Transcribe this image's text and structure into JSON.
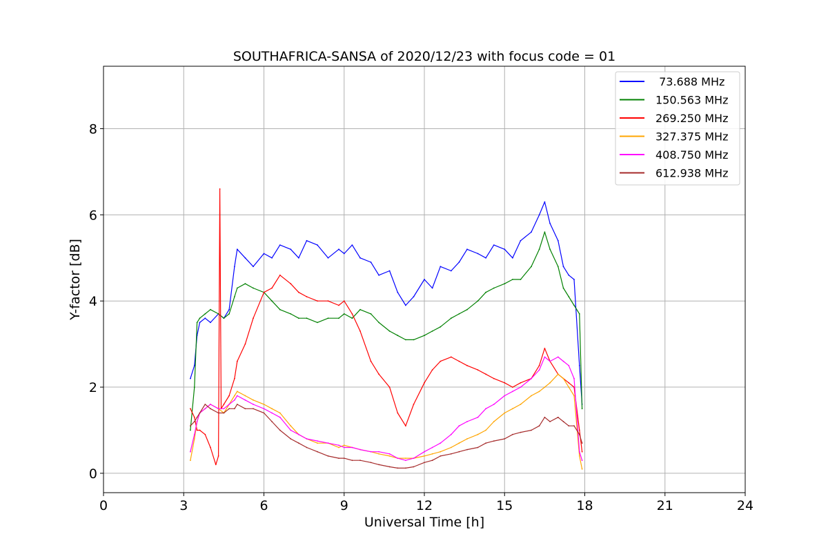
{
  "chart_data": {
    "type": "line",
    "title": "SOUTHAFRICA-SANSA of 2020/12/23 with focus code = 01",
    "xlabel": "Universal Time [h]",
    "ylabel": "Y-factor [dB]",
    "xlim": [
      0,
      24
    ],
    "ylim": [
      -0.45,
      9.45
    ],
    "xticks": [
      0,
      3,
      6,
      9,
      12,
      15,
      18,
      21,
      24
    ],
    "yticks": [
      0,
      2,
      4,
      6,
      8
    ],
    "grid": true,
    "legend_position": "top-right",
    "series": [
      {
        "name": " 73.688 MHz",
        "color": "#0000ff",
        "x": [
          3.25,
          3.4,
          3.5,
          3.6,
          3.8,
          4.0,
          4.3,
          4.5,
          4.7,
          4.9,
          5.0,
          5.3,
          5.6,
          6.0,
          6.3,
          6.6,
          7.0,
          7.3,
          7.6,
          8.0,
          8.4,
          8.8,
          9.0,
          9.3,
          9.6,
          10.0,
          10.3,
          10.7,
          11.0,
          11.3,
          11.6,
          12.0,
          12.3,
          12.6,
          13.0,
          13.3,
          13.6,
          14.0,
          14.3,
          14.6,
          15.0,
          15.3,
          15.6,
          16.0,
          16.3,
          16.5,
          16.7,
          17.0,
          17.2,
          17.4,
          17.6,
          17.8,
          17.9
        ],
        "values": [
          2.2,
          2.5,
          3.2,
          3.5,
          3.6,
          3.5,
          3.7,
          3.6,
          3.8,
          4.8,
          5.2,
          5.0,
          4.8,
          5.1,
          5.0,
          5.3,
          5.2,
          5.0,
          5.4,
          5.3,
          5.0,
          5.2,
          5.1,
          5.3,
          5.0,
          4.9,
          4.6,
          4.7,
          4.2,
          3.9,
          4.1,
          4.5,
          4.3,
          4.8,
          4.7,
          4.9,
          5.2,
          5.1,
          5.0,
          5.3,
          5.2,
          5.0,
          5.4,
          5.6,
          6.0,
          6.3,
          5.8,
          5.4,
          4.8,
          4.6,
          4.5,
          2.5,
          1.6
        ]
      },
      {
        "name": "150.563 MHz",
        "color": "#008000",
        "x": [
          3.25,
          3.4,
          3.5,
          3.6,
          3.8,
          4.0,
          4.3,
          4.5,
          4.7,
          4.9,
          5.0,
          5.3,
          5.6,
          6.0,
          6.3,
          6.6,
          7.0,
          7.3,
          7.6,
          8.0,
          8.4,
          8.8,
          9.0,
          9.3,
          9.6,
          10.0,
          10.3,
          10.7,
          11.0,
          11.3,
          11.6,
          12.0,
          12.3,
          12.6,
          13.0,
          13.3,
          13.6,
          14.0,
          14.3,
          14.6,
          15.0,
          15.3,
          15.6,
          16.0,
          16.3,
          16.5,
          16.7,
          17.0,
          17.2,
          17.4,
          17.6,
          17.8,
          17.9
        ],
        "values": [
          1.0,
          2.0,
          3.5,
          3.6,
          3.7,
          3.8,
          3.7,
          3.6,
          3.7,
          4.1,
          4.3,
          4.4,
          4.3,
          4.2,
          4.0,
          3.8,
          3.7,
          3.6,
          3.6,
          3.5,
          3.6,
          3.6,
          3.7,
          3.6,
          3.8,
          3.7,
          3.5,
          3.3,
          3.2,
          3.1,
          3.1,
          3.2,
          3.3,
          3.4,
          3.6,
          3.7,
          3.8,
          4.0,
          4.2,
          4.3,
          4.4,
          4.5,
          4.5,
          4.8,
          5.2,
          5.6,
          5.2,
          4.8,
          4.3,
          4.1,
          3.9,
          3.7,
          1.5
        ]
      },
      {
        "name": "269.250 MHz",
        "color": "#ff0000",
        "x": [
          3.25,
          3.4,
          3.5,
          3.6,
          3.8,
          4.0,
          4.2,
          4.3,
          4.35,
          4.4,
          4.5,
          4.7,
          4.9,
          5.0,
          5.3,
          5.6,
          6.0,
          6.3,
          6.6,
          7.0,
          7.3,
          7.6,
          8.0,
          8.4,
          8.8,
          9.0,
          9.3,
          9.6,
          10.0,
          10.3,
          10.7,
          11.0,
          11.3,
          11.6,
          12.0,
          12.3,
          12.6,
          13.0,
          13.3,
          13.6,
          14.0,
          14.3,
          14.6,
          15.0,
          15.3,
          15.6,
          16.0,
          16.3,
          16.5,
          16.7,
          17.0,
          17.2,
          17.4,
          17.6,
          17.8,
          17.9
        ],
        "values": [
          1.5,
          1.3,
          1.0,
          1.0,
          0.9,
          0.6,
          0.2,
          0.4,
          6.6,
          1.5,
          1.6,
          1.8,
          2.2,
          2.6,
          3.0,
          3.6,
          4.2,
          4.3,
          4.6,
          4.4,
          4.2,
          4.1,
          4.0,
          4.0,
          3.9,
          4.0,
          3.7,
          3.3,
          2.6,
          2.3,
          2.0,
          1.4,
          1.1,
          1.6,
          2.1,
          2.4,
          2.6,
          2.7,
          2.6,
          2.5,
          2.4,
          2.3,
          2.2,
          2.1,
          2.0,
          2.1,
          2.2,
          2.5,
          2.9,
          2.6,
          2.3,
          2.2,
          2.1,
          2.0,
          1.0,
          0.5
        ]
      },
      {
        "name": "327.375 MHz",
        "color": "#ffa500",
        "x": [
          3.25,
          3.4,
          3.5,
          3.6,
          3.8,
          4.0,
          4.3,
          4.5,
          4.7,
          4.9,
          5.0,
          5.3,
          5.6,
          6.0,
          6.3,
          6.6,
          7.0,
          7.3,
          7.6,
          8.0,
          8.4,
          8.8,
          9.0,
          9.3,
          9.6,
          10.0,
          10.3,
          10.7,
          11.0,
          11.3,
          11.6,
          12.0,
          12.3,
          12.6,
          13.0,
          13.3,
          13.6,
          14.0,
          14.3,
          14.6,
          15.0,
          15.3,
          15.6,
          16.0,
          16.3,
          16.5,
          16.7,
          17.0,
          17.2,
          17.4,
          17.6,
          17.8,
          17.9
        ],
        "values": [
          0.3,
          0.8,
          1.2,
          1.4,
          1.5,
          1.6,
          1.5,
          1.4,
          1.6,
          1.8,
          1.9,
          1.8,
          1.7,
          1.6,
          1.5,
          1.4,
          1.1,
          0.9,
          0.8,
          0.7,
          0.7,
          0.6,
          0.65,
          0.6,
          0.55,
          0.5,
          0.45,
          0.4,
          0.35,
          0.35,
          0.35,
          0.4,
          0.45,
          0.5,
          0.6,
          0.7,
          0.8,
          0.9,
          1.0,
          1.2,
          1.4,
          1.5,
          1.6,
          1.8,
          1.9,
          2.0,
          2.1,
          2.3,
          2.2,
          2.0,
          1.8,
          0.4,
          0.1
        ]
      },
      {
        "name": "408.750 MHz",
        "color": "#ff00ff",
        "x": [
          3.25,
          3.4,
          3.5,
          3.6,
          3.8,
          4.0,
          4.3,
          4.5,
          4.7,
          4.9,
          5.0,
          5.3,
          5.6,
          6.0,
          6.3,
          6.6,
          7.0,
          7.3,
          7.6,
          8.0,
          8.4,
          8.8,
          9.0,
          9.3,
          9.6,
          10.0,
          10.3,
          10.7,
          11.0,
          11.3,
          11.6,
          12.0,
          12.3,
          12.6,
          13.0,
          13.3,
          13.6,
          14.0,
          14.3,
          14.6,
          15.0,
          15.3,
          15.6,
          16.0,
          16.3,
          16.5,
          16.7,
          17.0,
          17.2,
          17.4,
          17.6,
          17.8,
          17.9
        ],
        "values": [
          0.5,
          0.9,
          1.2,
          1.4,
          1.5,
          1.6,
          1.5,
          1.5,
          1.6,
          1.7,
          1.8,
          1.7,
          1.6,
          1.5,
          1.4,
          1.3,
          1.0,
          0.9,
          0.8,
          0.75,
          0.7,
          0.65,
          0.6,
          0.6,
          0.55,
          0.5,
          0.5,
          0.45,
          0.35,
          0.3,
          0.35,
          0.5,
          0.6,
          0.7,
          0.9,
          1.1,
          1.2,
          1.3,
          1.5,
          1.6,
          1.8,
          1.9,
          2.0,
          2.2,
          2.4,
          2.7,
          2.6,
          2.7,
          2.6,
          2.5,
          2.2,
          0.5,
          0.3
        ]
      },
      {
        "name": "612.938 MHz",
        "color": "#a52a2a",
        "x": [
          3.25,
          3.4,
          3.5,
          3.6,
          3.8,
          4.0,
          4.3,
          4.5,
          4.7,
          4.9,
          5.0,
          5.3,
          5.6,
          6.0,
          6.3,
          6.6,
          7.0,
          7.3,
          7.6,
          8.0,
          8.4,
          8.8,
          9.0,
          9.3,
          9.6,
          10.0,
          10.3,
          10.7,
          11.0,
          11.3,
          11.6,
          12.0,
          12.3,
          12.6,
          13.0,
          13.3,
          13.6,
          14.0,
          14.3,
          14.6,
          15.0,
          15.3,
          15.6,
          16.0,
          16.3,
          16.5,
          16.7,
          17.0,
          17.2,
          17.4,
          17.6,
          17.8,
          17.9
        ],
        "values": [
          1.1,
          1.2,
          1.3,
          1.4,
          1.6,
          1.5,
          1.4,
          1.4,
          1.5,
          1.5,
          1.6,
          1.5,
          1.5,
          1.4,
          1.2,
          1.0,
          0.8,
          0.7,
          0.6,
          0.5,
          0.4,
          0.35,
          0.35,
          0.3,
          0.3,
          0.25,
          0.2,
          0.15,
          0.12,
          0.12,
          0.15,
          0.25,
          0.3,
          0.4,
          0.45,
          0.5,
          0.55,
          0.6,
          0.7,
          0.75,
          0.8,
          0.9,
          0.95,
          1.0,
          1.1,
          1.3,
          1.2,
          1.3,
          1.2,
          1.1,
          1.1,
          0.9,
          0.7
        ]
      }
    ]
  }
}
